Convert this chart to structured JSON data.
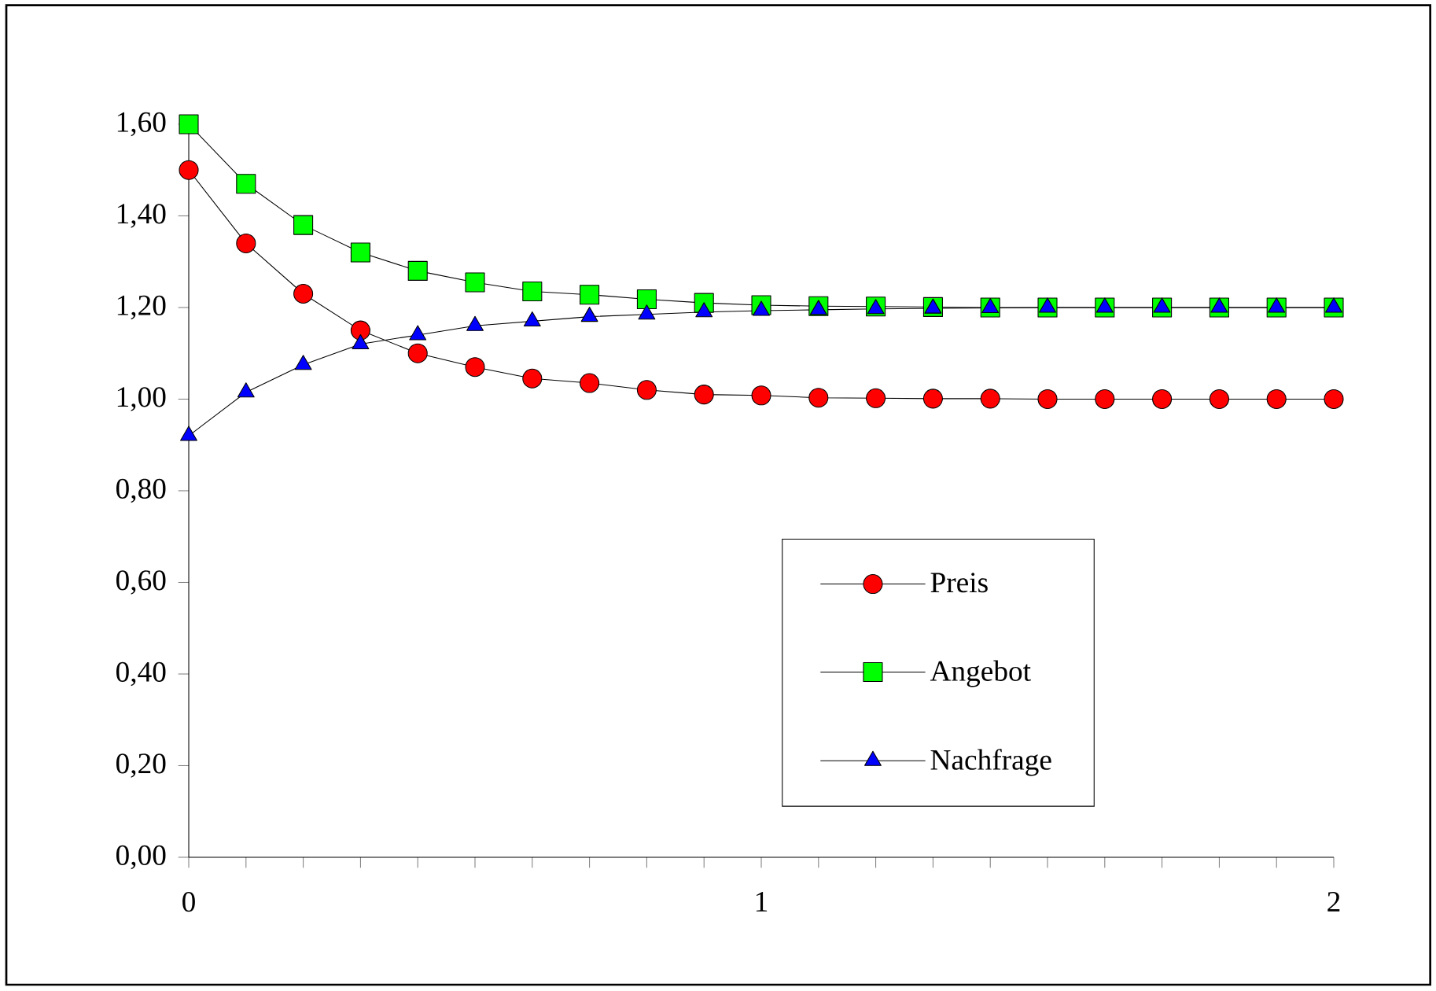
{
  "chart_data": {
    "type": "line",
    "x": [
      0,
      0.1,
      0.2,
      0.3,
      0.4,
      0.5,
      0.6,
      0.7,
      0.8,
      0.9,
      1.0,
      1.1,
      1.2,
      1.3,
      1.4,
      1.5,
      1.6,
      1.7,
      1.8,
      1.9,
      2.0
    ],
    "series": [
      {
        "name": "Preis",
        "color": "#ff0000",
        "marker": "circle",
        "values": [
          1.5,
          1.34,
          1.23,
          1.15,
          1.1,
          1.07,
          1.045,
          1.035,
          1.02,
          1.01,
          1.008,
          1.003,
          1.002,
          1.001,
          1.001,
          1.0,
          1.0,
          1.0,
          1.0,
          1.0,
          1.0
        ]
      },
      {
        "name": "Angebot",
        "color": "#00ff00",
        "marker": "square",
        "values": [
          1.6,
          1.47,
          1.38,
          1.32,
          1.28,
          1.255,
          1.235,
          1.228,
          1.218,
          1.21,
          1.205,
          1.203,
          1.202,
          1.201,
          1.2,
          1.2,
          1.2,
          1.2,
          1.2,
          1.2,
          1.2
        ]
      },
      {
        "name": "Nachfrage",
        "color": "#0000ff",
        "marker": "triangle",
        "values": [
          0.92,
          1.015,
          1.075,
          1.12,
          1.14,
          1.16,
          1.17,
          1.18,
          1.185,
          1.19,
          1.193,
          1.195,
          1.197,
          1.198,
          1.199,
          1.2,
          1.2,
          1.2,
          1.2,
          1.2,
          1.2
        ]
      }
    ],
    "xlim": [
      0,
      2
    ],
    "xticks": [
      0,
      {
        "value": 0.1,
        "label": null
      },
      {
        "value": 0.2,
        "label": null
      },
      {
        "value": 0.3,
        "label": null
      },
      {
        "value": 0.4,
        "label": null
      },
      {
        "value": 0.5,
        "label": null
      },
      {
        "value": 0.6,
        "label": null
      },
      {
        "value": 0.7,
        "label": null
      },
      {
        "value": 0.8,
        "label": null
      },
      {
        "value": 0.9,
        "label": null
      },
      1,
      {
        "value": 1.1,
        "label": null
      },
      {
        "value": 1.2,
        "label": null
      },
      {
        "value": 1.3,
        "label": null
      },
      {
        "value": 1.4,
        "label": null
      },
      {
        "value": 1.5,
        "label": null
      },
      {
        "value": 1.6,
        "label": null
      },
      {
        "value": 1.7,
        "label": null
      },
      {
        "value": 1.8,
        "label": null
      },
      {
        "value": 1.9,
        "label": null
      },
      2
    ],
    "ylim": [
      0,
      1.6
    ],
    "yticks": [
      {
        "value": 0,
        "label": "0,00"
      },
      {
        "value": 0.2,
        "label": "0,20"
      },
      {
        "value": 0.4,
        "label": "0,40"
      },
      {
        "value": 0.6,
        "label": "0,60"
      },
      {
        "value": 0.8,
        "label": "0,80"
      },
      {
        "value": 1.0,
        "label": "1,00"
      },
      {
        "value": 1.2,
        "label": "1,20"
      },
      {
        "value": 1.4,
        "label": "1,40"
      },
      {
        "value": 1.6,
        "label": "1,60"
      }
    ],
    "grid": false,
    "legend": "right",
    "line_style": "solid"
  }
}
